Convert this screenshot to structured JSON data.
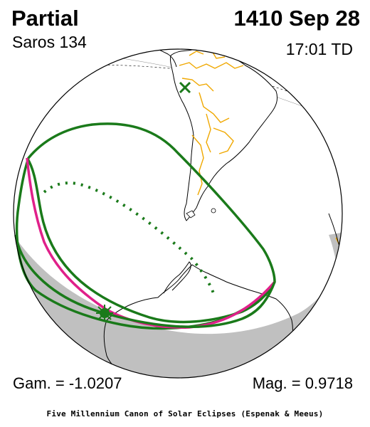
{
  "header": {
    "eclipse_type": "Partial",
    "date": "1410 Sep 28",
    "saros": "Saros 134",
    "time": "17:01 TD"
  },
  "footer": {
    "gamma": "Gam. = -1.0207",
    "magnitude": "Mag. = 0.9718",
    "credit": "Five Millennium Canon of Solar Eclipses (Espenak & Meeus)"
  },
  "colors": {
    "land": "#ffffff",
    "night": "#c0c0c0",
    "borders": "#f0a800",
    "contours": "#1a7a1a",
    "max_contour": "#e0208a",
    "coastline": "#000000"
  },
  "markers": {
    "greatest_eclipse_icon": "x-mark",
    "sub_solar_icon": "sun-star"
  }
}
